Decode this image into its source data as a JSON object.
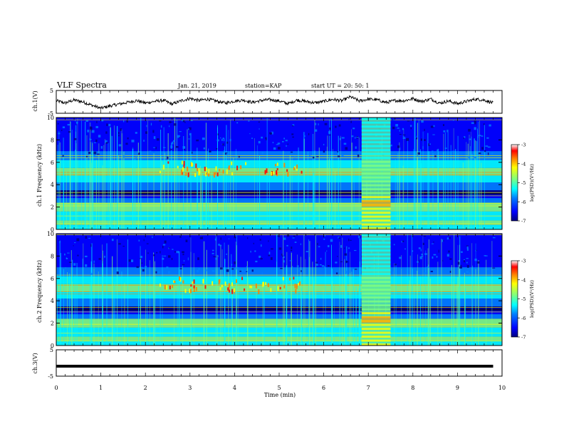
{
  "header": {
    "title": "VLF Spectra",
    "date": "Jan. 21, 2019",
    "station": "station=KAP",
    "start": "start UT =  20: 50: 1"
  },
  "colors": {
    "colormap": [
      "#00007f",
      "#0000ff",
      "#007fff",
      "#00ffff",
      "#7fff7f",
      "#ffff00",
      "#ff7f00",
      "#ff0000",
      "#7f0000"
    ],
    "waveform": "#000000",
    "frame": "#000000"
  },
  "chart_data": [
    {
      "type": "line",
      "panel": "ch1-waveform",
      "ylabel": "ch.1(V)",
      "ylim": [
        -5,
        5
      ],
      "yticks": [
        "5",
        "-5"
      ],
      "x": [
        0,
        0.2,
        0.4,
        0.6,
        0.8,
        1.0,
        1.2,
        1.4,
        1.6,
        1.8,
        2.0,
        2.2,
        2.4,
        2.6,
        2.8,
        3.0,
        3.2,
        3.4,
        3.6,
        3.8,
        4.0,
        4.2,
        4.4,
        4.6,
        4.8,
        5.0,
        5.2,
        5.4,
        5.6,
        5.8,
        6.0,
        6.2,
        6.4,
        6.6,
        6.8,
        7.0,
        7.2,
        7.4,
        7.6,
        7.8,
        8.0,
        8.2,
        8.4,
        8.6,
        8.8,
        9.0,
        9.2,
        9.4,
        9.6,
        9.8
      ],
      "values": [
        0.5,
        -0.5,
        0.8,
        0,
        -1.5,
        -2.8,
        -1.8,
        -1,
        -0.2,
        0.6,
        -0.5,
        0.2,
        0.7,
        -1.0,
        0.5,
        1.5,
        0.6,
        1.2,
        0.3,
        -0.5,
        0.4,
        0.8,
        -0.2,
        0.6,
        1.0,
        0.4,
        -0.8,
        0.8,
        0.2,
        -0.4,
        0.2,
        1.1,
        0.5,
        2.2,
        0.4,
        1.2,
        0.9,
        -0.3,
        0.6,
        0.5,
        1.4,
        0.2,
        1.3,
        -0.6,
        0.4,
        -0.8,
        0.2,
        1.2,
        0.8,
        -0.5
      ]
    },
    {
      "type": "heatmap",
      "panel": "ch1-spectrogram",
      "ylabel": "ch.1 Frequency (kHz)",
      "ylim": [
        0,
        10
      ],
      "yticks": [
        "0",
        "2",
        "4",
        "6",
        "8",
        "10"
      ],
      "colorbar": {
        "label": "log(PSD)(V²/Hz)",
        "ticks": [
          "-3",
          "-4",
          "-5",
          "-6",
          "-7"
        ],
        "range": [
          -7,
          -3
        ]
      }
    },
    {
      "type": "heatmap",
      "panel": "ch2-spectrogram",
      "ylabel": "ch.2 Frequency (kHz)",
      "ylim": [
        0,
        10
      ],
      "yticks": [
        "0",
        "2",
        "4",
        "6",
        "8",
        "10"
      ],
      "colorbar": {
        "label": "log(PSD)(V²/Hz)",
        "ticks": [
          "-3",
          "-4",
          "-5",
          "-6",
          "-7"
        ],
        "range": [
          -7,
          -3
        ]
      }
    },
    {
      "type": "line",
      "panel": "ch3-waveform",
      "ylabel": "ch.3(V)",
      "ylim": [
        -5,
        5
      ],
      "yticks": [
        "5",
        "-5"
      ],
      "x": [
        0,
        9.8
      ],
      "values": [
        -1.2,
        -1.2
      ]
    }
  ],
  "xaxis": {
    "label": "Time (min)",
    "ticks": [
      "0",
      "1",
      "2",
      "3",
      "4",
      "5",
      "6",
      "7",
      "8",
      "9",
      "10"
    ],
    "range": [
      0,
      10
    ]
  }
}
